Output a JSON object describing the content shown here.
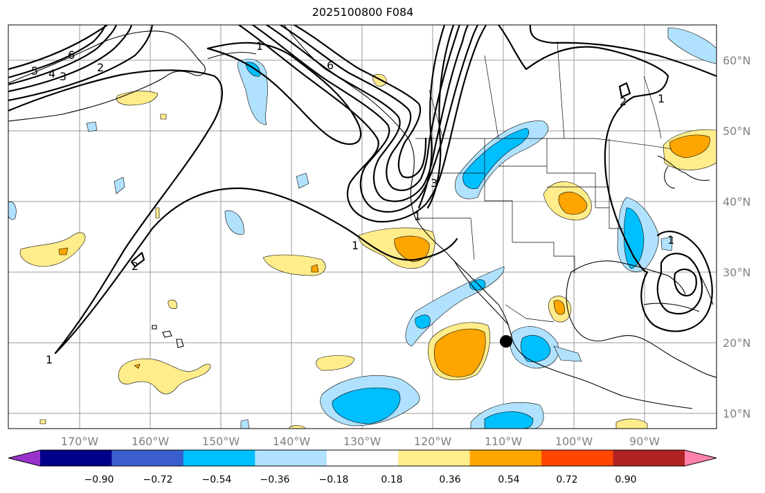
{
  "title": "2025100800 F084",
  "map": {
    "lat_labels": [
      "60°N",
      "50°N",
      "40°N",
      "30°N",
      "20°N",
      "10°N"
    ],
    "lon_labels": [
      "170°W",
      "160°W",
      "150°W",
      "140°W",
      "130°W",
      "120°W",
      "110°W",
      "100°W",
      "90°W"
    ],
    "contour_labels": [
      "6",
      "5",
      "4",
      "3",
      "2",
      "1",
      "6",
      "1",
      "3",
      "1",
      "2",
      "1",
      "1",
      "2",
      "1"
    ],
    "marker": "point-marker"
  },
  "colorbar": {
    "ticks": [
      "−0.90",
      "−0.72",
      "−0.54",
      "−0.36",
      "−0.18",
      "0.18",
      "0.36",
      "0.54",
      "0.72",
      "0.90"
    ],
    "colors": [
      "#9932CC",
      "#00008B",
      "#3A5FCD",
      "#00BFFF",
      "#B0E2FF",
      "#FFFFFF",
      "#FFEC8B",
      "#FFA500",
      "#FF4500",
      "#B22222",
      "#FF82AB"
    ]
  }
}
